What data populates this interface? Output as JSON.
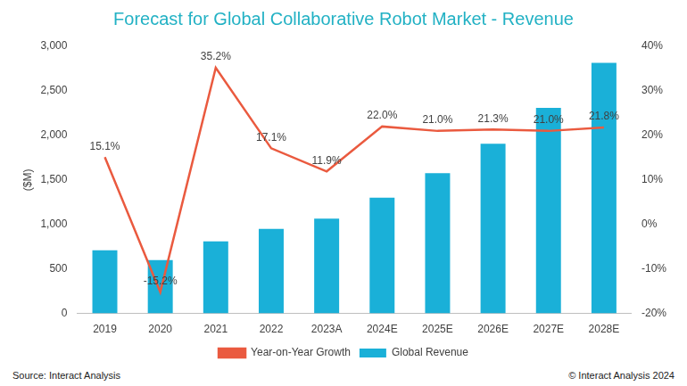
{
  "chart_data": {
    "type": "bar",
    "title": "Forecast for Global Collaborative Robot Market - Revenue",
    "y_label": "($M)",
    "categories": [
      "2019",
      "2020",
      "2021",
      "2022",
      "2023A",
      "2024E",
      "2025E",
      "2026E",
      "2027E",
      "2028E"
    ],
    "series": [
      {
        "name": "Global Revenue",
        "type": "bar",
        "color": "#1ab0d8",
        "values": [
          710,
          600,
          810,
          950,
          1065,
          1300,
          1575,
          1905,
          2310,
          2815
        ]
      },
      {
        "name": "Year-on-Year Growth",
        "type": "line",
        "color": "#ea5a3f",
        "axis": "y2",
        "values": [
          15.1,
          -15.2,
          35.2,
          17.1,
          11.9,
          22.0,
          21.0,
          21.3,
          21.0,
          21.8
        ],
        "value_labels": [
          "15.1%",
          "-15.2%",
          "35.2%",
          "17.1%",
          "11.9%",
          "22.0%",
          "21.0%",
          "21.3%",
          "21.0%",
          "21.8%"
        ],
        "data_labels": true
      }
    ],
    "ylim": [
      0,
      3000
    ],
    "yticks": [
      0,
      500,
      {
        "value": 1000,
        "label": "1,000"
      },
      {
        "value": 1500,
        "label": "1,500"
      },
      {
        "value": 2000,
        "label": "2,000"
      },
      {
        "value": 2500,
        "label": "2,500"
      },
      {
        "value": 3000,
        "label": "3,000"
      }
    ],
    "y2lim": [
      -20,
      40
    ],
    "y2ticks": [
      {
        "value": -20,
        "label": "-20%"
      },
      {
        "value": -10,
        "label": "-10%"
      },
      {
        "value": 0,
        "label": "0%"
      },
      {
        "value": 10,
        "label": "10%"
      },
      {
        "value": 20,
        "label": "20%"
      },
      {
        "value": 30,
        "label": "30%"
      },
      {
        "value": 40,
        "label": "40%"
      }
    ],
    "grid": false,
    "legend": "bottom",
    "source": "Source: Interact Analysis",
    "copyright": "© Interact Analysis 2024"
  }
}
